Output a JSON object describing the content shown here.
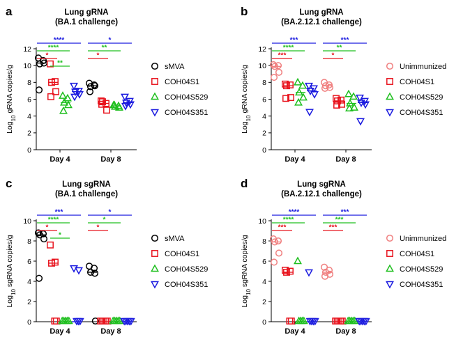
{
  "colors": {
    "sMVA": "#000000",
    "Unimmunized": "#f08080",
    "COH04S1": "#e8141e",
    "COH04S529": "#1fbf1f",
    "COH04S351": "#1a1adf"
  },
  "chart_data": [
    {
      "id": "a",
      "type": "scatter",
      "panel_letter": "a",
      "title_line1": "Lung gRNA",
      "title_line2": "(BA.1 challenge)",
      "ylabel_prefix": "Log",
      "ylabel_sub": "10",
      "ylabel_suffix": " gRNA copies/g",
      "ylim": [
        0,
        12
      ],
      "yticks": [
        0,
        2,
        4,
        6,
        8,
        10,
        12
      ],
      "categories": [
        "Day 4",
        "Day 8"
      ],
      "series": [
        {
          "name": "sMVA",
          "marker": "circle",
          "color_key": "sMVA",
          "values": [
            [
              10.9,
              10.6,
              10.2,
              10.3,
              7.1
            ],
            [
              7.9,
              7.7,
              7.5,
              7.6,
              6.9
            ]
          ]
        },
        {
          "name": "COH04S1",
          "marker": "square",
          "color_key": "COH04S1",
          "values": [
            [
              10.2,
              8.1,
              8.0,
              6.9,
              6.3
            ],
            [
              5.8,
              5.5,
              5.7,
              4.7,
              5.4
            ]
          ]
        },
        {
          "name": "COH04S529",
          "marker": "triangle-up",
          "color_key": "COH04S529",
          "values": [
            [
              6.4,
              6.1,
              5.6,
              5.3,
              4.6
            ],
            [
              5.3,
              5.2,
              5.1,
              5.0,
              5.3
            ]
          ]
        },
        {
          "name": "COH04S351",
          "marker": "triangle-down",
          "color_key": "COH04S351",
          "values": [
            [
              7.6,
              7.0,
              6.9,
              6.6,
              6.3
            ],
            [
              6.3,
              5.8,
              5.6,
              5.4,
              5.2
            ]
          ]
        }
      ],
      "significance": [
        {
          "category": 0,
          "to_series": "COH04S351",
          "label": "****",
          "color_key": "COH04S351"
        },
        {
          "category": 0,
          "to_series": "COH04S529",
          "label": "****",
          "color_key": "COH04S529"
        },
        {
          "category": 0,
          "to_series": "COH04S1",
          "label": "*",
          "color_key": "COH04S1"
        },
        {
          "category": 0,
          "from_series": "COH04S1",
          "to_series": "COH04S529",
          "label": "**",
          "color_key": "COH04S529"
        },
        {
          "category": 1,
          "to_series": "COH04S351",
          "label": "*",
          "color_key": "COH04S351"
        },
        {
          "category": 1,
          "to_series": "COH04S529",
          "label": "**",
          "color_key": "COH04S529"
        },
        {
          "category": 1,
          "to_series": "COH04S1",
          "label": "*",
          "color_key": "COH04S1"
        }
      ],
      "legend": [
        "sMVA",
        "COH04S1",
        "COH04S529",
        "COH04S351"
      ],
      "legend_position": "right"
    },
    {
      "id": "b",
      "type": "scatter",
      "panel_letter": "b",
      "title_line1": "Lung gRNA",
      "title_line2": "(BA.2.12.1 challenge)",
      "ylabel_prefix": "Log",
      "ylabel_sub": "10",
      "ylabel_suffix": " gRNA copies/g",
      "ylim": [
        0,
        12
      ],
      "yticks": [
        0,
        2,
        4,
        6,
        8,
        10,
        12
      ],
      "categories": [
        "Day 4",
        "Day 8"
      ],
      "series": [
        {
          "name": "Unimmunized",
          "marker": "circle",
          "color_key": "Unimmunized",
          "values": [
            [
              10.1,
              10.0,
              9.9,
              9.2,
              8.6
            ],
            [
              8.0,
              7.7,
              7.6,
              7.4,
              7.3
            ]
          ]
        },
        {
          "name": "COH04S1",
          "marker": "square",
          "color_key": "COH04S1",
          "values": [
            [
              7.8,
              7.7,
              7.6,
              6.2,
              6.1
            ],
            [
              6.1,
              5.9,
              5.8,
              5.4,
              5.3
            ]
          ]
        },
        {
          "name": "COH04S529",
          "marker": "triangle-up",
          "color_key": "COH04S529",
          "values": [
            [
              8.0,
              7.6,
              6.8,
              6.2,
              5.6
            ],
            [
              6.6,
              6.3,
              5.5,
              5.0,
              4.9
            ]
          ]
        },
        {
          "name": "COH04S351",
          "marker": "triangle-down",
          "color_key": "COH04S351",
          "values": [
            [
              7.6,
              7.3,
              7.0,
              6.6,
              4.5
            ],
            [
              6.2,
              5.8,
              5.6,
              5.4,
              3.4
            ]
          ]
        }
      ],
      "significance": [
        {
          "category": 0,
          "to_series": "COH04S351",
          "label": "***",
          "color_key": "COH04S351"
        },
        {
          "category": 0,
          "to_series": "COH04S529",
          "label": "****",
          "color_key": "COH04S529"
        },
        {
          "category": 0,
          "to_series": "COH04S1",
          "label": "***",
          "color_key": "COH04S1"
        },
        {
          "category": 1,
          "to_series": "COH04S351",
          "label": "***",
          "color_key": "COH04S351"
        },
        {
          "category": 1,
          "to_series": "COH04S529",
          "label": "**",
          "color_key": "COH04S529"
        },
        {
          "category": 1,
          "to_series": "COH04S1",
          "label": "*",
          "color_key": "COH04S1"
        }
      ],
      "legend": [
        "Unimmunized",
        "COH04S1",
        "COH04S529",
        "COH04S351"
      ],
      "legend_position": "right"
    },
    {
      "id": "c",
      "type": "scatter",
      "panel_letter": "c",
      "title_line1": "Lung sgRNA",
      "title_line2": "(BA.1 challenge)",
      "ylabel_prefix": "Log",
      "ylabel_sub": "10",
      "ylabel_suffix": " sgRNA copies/g",
      "ylim": [
        0,
        10
      ],
      "yticks": [
        0,
        2,
        4,
        6,
        8,
        10
      ],
      "categories": [
        "Day 4",
        "Day 8"
      ],
      "series": [
        {
          "name": "sMVA",
          "marker": "circle",
          "color_key": "sMVA",
          "values": [
            [
              8.8,
              8.7,
              8.6,
              8.2,
              4.3
            ],
            [
              5.5,
              5.3,
              4.9,
              4.8,
              0
            ]
          ]
        },
        {
          "name": "COH04S1",
          "marker": "square",
          "color_key": "COH04S1",
          "values": [
            [
              7.6,
              5.9,
              5.8,
              0,
              0
            ],
            [
              0,
              0,
              0,
              0,
              0
            ]
          ]
        },
        {
          "name": "COH04S529",
          "marker": "triangle-up",
          "color_key": "COH04S529",
          "values": [
            [
              0,
              0,
              0,
              0,
              0
            ],
            [
              0,
              0,
              0,
              0,
              0
            ]
          ]
        },
        {
          "name": "COH04S351",
          "marker": "triangle-down",
          "color_key": "COH04S351",
          "values": [
            [
              5.3,
              5.1,
              0,
              0,
              0
            ],
            [
              0,
              0,
              0,
              0,
              0
            ]
          ]
        }
      ],
      "significance": [
        {
          "category": 0,
          "to_series": "COH04S351",
          "label": "***",
          "color_key": "COH04S351"
        },
        {
          "category": 0,
          "to_series": "COH04S529",
          "label": "****",
          "color_key": "COH04S529"
        },
        {
          "category": 0,
          "to_series": "COH04S1",
          "label": "*",
          "color_key": "COH04S1"
        },
        {
          "category": 0,
          "from_series": "COH04S1",
          "to_series": "COH04S529",
          "label": "*",
          "color_key": "COH04S529"
        },
        {
          "category": 1,
          "to_series": "COH04S351",
          "label": "*",
          "color_key": "COH04S351"
        },
        {
          "category": 1,
          "to_series": "COH04S529",
          "label": "*",
          "color_key": "COH04S529"
        },
        {
          "category": 1,
          "to_series": "COH04S1",
          "label": "*",
          "color_key": "COH04S1"
        }
      ],
      "legend": [
        "sMVA",
        "COH04S1",
        "COH04S529",
        "COH04S351"
      ],
      "legend_position": "right"
    },
    {
      "id": "d",
      "type": "scatter",
      "panel_letter": "d",
      "title_line1": "Lung sgRNA",
      "title_line2": "(BA.2.12.1 challenge)",
      "ylabel_prefix": "Log",
      "ylabel_sub": "10",
      "ylabel_suffix": " sgRNA copies/g",
      "ylim": [
        0,
        10
      ],
      "yticks": [
        0,
        2,
        4,
        6,
        8,
        10
      ],
      "categories": [
        "Day 4",
        "Day 8"
      ],
      "series": [
        {
          "name": "Unimmunized",
          "marker": "circle",
          "color_key": "Unimmunized",
          "values": [
            [
              8.2,
              8.0,
              7.9,
              6.8,
              5.9
            ],
            [
              5.4,
              5.1,
              4.9,
              4.7,
              4.5
            ]
          ]
        },
        {
          "name": "COH04S1",
          "marker": "square",
          "color_key": "COH04S1",
          "values": [
            [
              5.1,
              5.0,
              4.9,
              0,
              0
            ],
            [
              0,
              0,
              0,
              0,
              0
            ]
          ]
        },
        {
          "name": "COH04S529",
          "marker": "triangle-up",
          "color_key": "COH04S529",
          "values": [
            [
              6.0,
              0,
              0,
              0,
              0
            ],
            [
              0,
              0,
              0,
              0,
              0
            ]
          ]
        },
        {
          "name": "COH04S351",
          "marker": "triangle-down",
          "color_key": "COH04S351",
          "values": [
            [
              4.9,
              0,
              0,
              0,
              0
            ],
            [
              0,
              0,
              0,
              0,
              0
            ]
          ]
        }
      ],
      "significance": [
        {
          "category": 0,
          "to_series": "COH04S351",
          "label": "****",
          "color_key": "COH04S351"
        },
        {
          "category": 0,
          "to_series": "COH04S529",
          "label": "****",
          "color_key": "COH04S529"
        },
        {
          "category": 0,
          "to_series": "COH04S1",
          "label": "***",
          "color_key": "COH04S1"
        },
        {
          "category": 1,
          "to_series": "COH04S351",
          "label": "***",
          "color_key": "COH04S351"
        },
        {
          "category": 1,
          "to_series": "COH04S529",
          "label": "***",
          "color_key": "COH04S529"
        },
        {
          "category": 1,
          "to_series": "COH04S1",
          "label": "***",
          "color_key": "COH04S1"
        }
      ],
      "legend": [
        "Unimmunized",
        "COH04S1",
        "COH04S529",
        "COH04S351"
      ],
      "legend_position": "right"
    }
  ]
}
